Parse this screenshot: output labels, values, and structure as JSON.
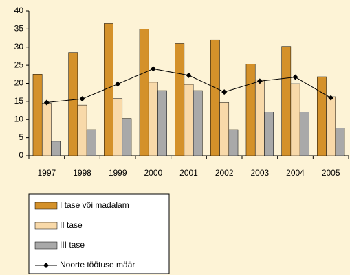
{
  "chart_data": {
    "type": "bar_line",
    "categories": [
      "1997",
      "1998",
      "1999",
      "2000",
      "2001",
      "2002",
      "2003",
      "2004",
      "2005"
    ],
    "series": [
      {
        "name": "I tase või madalam",
        "type": "bar",
        "color": "#d4912a",
        "values": [
          22.5,
          28.5,
          36.5,
          35,
          31,
          32,
          25.3,
          30.2,
          21.8
        ]
      },
      {
        "name": "II tase",
        "type": "bar",
        "color": "#f8d9a9",
        "values": [
          14.5,
          14,
          15.8,
          20.3,
          19.7,
          14.7,
          21,
          19.9,
          16.3
        ]
      },
      {
        "name": "III tase",
        "type": "bar",
        "color": "#a9a9a9",
        "values": [
          4,
          7.2,
          10.3,
          18,
          18,
          7.2,
          12,
          12,
          7.7
        ]
      },
      {
        "name": "Noorte töötuse määr",
        "type": "line",
        "color": "#000000",
        "values": [
          14.7,
          15.7,
          19.8,
          24,
          22.2,
          17.6,
          20.6,
          21.7,
          16
        ]
      }
    ],
    "ylim": [
      0,
      40
    ],
    "yticks": [
      0,
      5,
      10,
      15,
      20,
      25,
      30,
      35,
      40
    ],
    "grid": false
  }
}
